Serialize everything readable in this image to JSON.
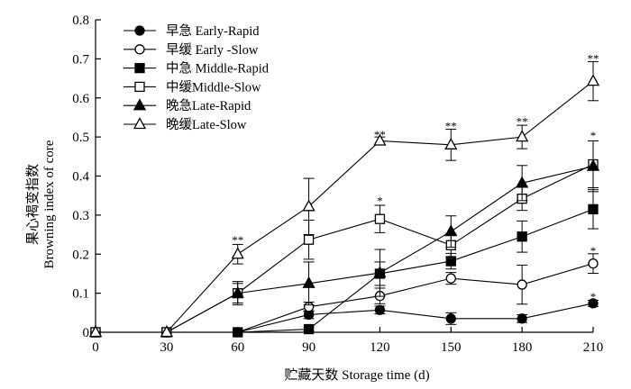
{
  "chart_data": {
    "type": "line",
    "xlabel": "贮藏天数 Storage time (d)",
    "ylabel_cn": "果心褐变指数",
    "ylabel_en": "Browning index of core",
    "x": [
      0,
      30,
      60,
      90,
      120,
      150,
      180,
      210
    ],
    "x_ticks": [
      "0",
      "30",
      "60",
      "90",
      "120",
      "150",
      "180",
      "210"
    ],
    "xlim": [
      0,
      210
    ],
    "ylim": [
      0,
      0.8
    ],
    "y_ticks": [
      "0",
      "0.1",
      "0.2",
      "0.3",
      "0.4",
      "0.5",
      "0.6",
      "0.7",
      "0.8"
    ],
    "legend_position": "top-left",
    "series": [
      {
        "name": "早急 Early-Rapid",
        "marker": "circle-filled",
        "values": [
          0,
          0,
          0,
          0.045,
          0.057,
          0.035,
          0.035,
          0.074
        ],
        "errors": [
          0,
          0,
          0,
          0.01,
          0.01,
          0.015,
          0.01,
          0.008
        ]
      },
      {
        "name": "早缓 Early -Slow",
        "marker": "circle-open",
        "values": [
          0,
          0,
          0,
          0.065,
          0.093,
          0.138,
          0.122,
          0.176
        ],
        "errors": [
          0,
          0,
          0,
          0.012,
          0.02,
          0.015,
          0.05,
          0.025
        ]
      },
      {
        "name": "中急 Middle-Rapid",
        "marker": "square-filled",
        "values": [
          0,
          0,
          0,
          0.008,
          0.15,
          0.182,
          0.245,
          0.315
        ],
        "errors": [
          0,
          0,
          0,
          0.005,
          0.03,
          0.02,
          0.04,
          0.05
        ]
      },
      {
        "name": "中缓Middle-Slow",
        "marker": "square-open",
        "values": [
          0,
          0,
          0.1,
          0.237,
          0.29,
          0.223,
          0.342,
          0.43
        ],
        "errors": [
          0,
          0,
          0.025,
          0.05,
          0.035,
          0.03,
          0.03,
          0.06
        ]
      },
      {
        "name": "晚急Late-Rapid",
        "marker": "triangle-filled",
        "values": [
          0,
          0,
          0.1,
          0.125,
          0.152,
          0.258,
          0.382,
          0.425
        ],
        "errors": [
          0,
          0,
          0.03,
          0.055,
          0.06,
          0.04,
          0.045,
          0.065
        ]
      },
      {
        "name": "晚缓Late-Slow",
        "marker": "triangle-open",
        "values": [
          0,
          0,
          0.2,
          0.322,
          0.49,
          0.48,
          0.5,
          0.643
        ],
        "errors": [
          0,
          0,
          0.025,
          0.072,
          0.01,
          0.04,
          0.03,
          0.05
        ]
      }
    ],
    "annotations": [
      {
        "x": 60,
        "y": 0.235,
        "text": "**"
      },
      {
        "x": 120,
        "y": 0.505,
        "text": "**"
      },
      {
        "x": 120,
        "y": 0.335,
        "text": "*"
      },
      {
        "x": 150,
        "y": 0.527,
        "text": "**"
      },
      {
        "x": 180,
        "y": 0.538,
        "text": "**"
      },
      {
        "x": 210,
        "y": 0.7,
        "text": "**"
      },
      {
        "x": 210,
        "y": 0.503,
        "text": "*"
      },
      {
        "x": 210,
        "y": 0.208,
        "text": "*"
      },
      {
        "x": 210,
        "y": 0.09,
        "text": "*"
      }
    ]
  }
}
